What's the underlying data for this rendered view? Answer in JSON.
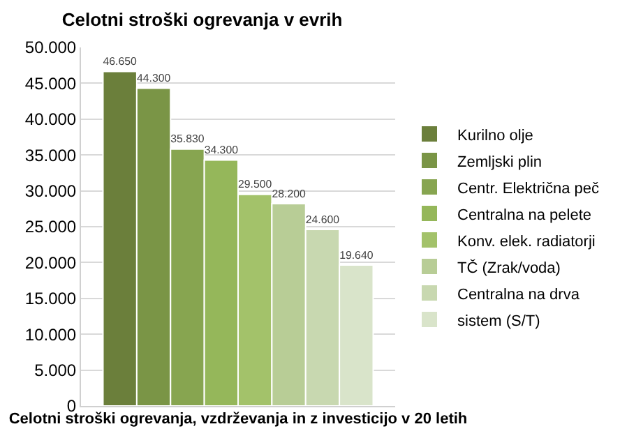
{
  "chart_data": {
    "type": "bar",
    "title": "Celotni stroški ogrevanja v evrih",
    "xlabel": "Celotni stroški ogrevanja, vzdrževanja in z investicijo v 20 letih",
    "categories": [
      null
    ],
    "series": [
      {
        "name": "Kurilno olje",
        "color": "#6b7f3b",
        "values": [
          46650
        ],
        "value_labels": [
          "46.650"
        ]
      },
      {
        "name": "Zemljski plin",
        "color": "#7a9546",
        "values": [
          44300
        ],
        "value_labels": [
          "44.300"
        ]
      },
      {
        "name": "Centr. Električna peč",
        "color": "#87a550",
        "values": [
          35830
        ],
        "value_labels": [
          "35.830"
        ]
      },
      {
        "name": "Centralna na pelete",
        "color": "#95b75a",
        "values": [
          34300
        ],
        "value_labels": [
          "34.300"
        ]
      },
      {
        "name": "Konv. elek. radiatorji",
        "color": "#a3c26a",
        "values": [
          29500
        ],
        "value_labels": [
          "29.500"
        ]
      },
      {
        "name": "TČ (Zrak/voda)",
        "color": "#b8cd96",
        "values": [
          28200
        ],
        "value_labels": [
          "28.200"
        ]
      },
      {
        "name": "Centralna na drva",
        "color": "#c8d8b0",
        "values": [
          24600
        ],
        "value_labels": [
          "24.600"
        ]
      },
      {
        "name": "sistem (S/T)",
        "color": "#d9e4ca",
        "values": [
          19640
        ],
        "value_labels": [
          "19.640"
        ]
      }
    ],
    "ylim": [
      0,
      50000
    ],
    "yticks": [
      {
        "value": 0,
        "label": "0"
      },
      {
        "value": 5000,
        "label": "5.000"
      },
      {
        "value": 10000,
        "label": "10.000"
      },
      {
        "value": 15000,
        "label": "15.000"
      },
      {
        "value": 20000,
        "label": "20.000"
      },
      {
        "value": 25000,
        "label": "25.000"
      },
      {
        "value": 30000,
        "label": "30.000"
      },
      {
        "value": 35000,
        "label": "35.000"
      },
      {
        "value": 40000,
        "label": "40.000"
      },
      {
        "value": 45000,
        "label": "45.000"
      },
      {
        "value": 50000,
        "label": "50.000"
      }
    ],
    "grid": "y",
    "legend": "right"
  }
}
